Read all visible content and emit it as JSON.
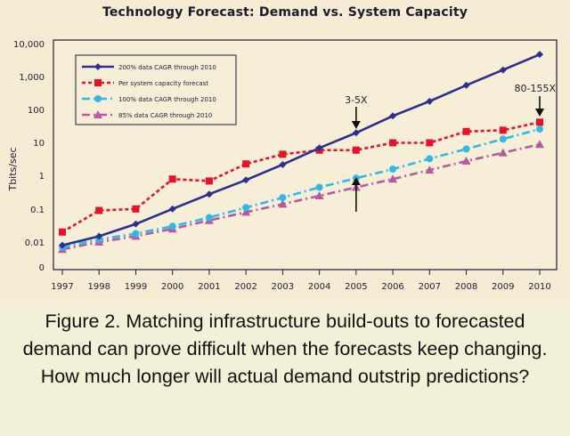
{
  "caption": "Figure 2. Matching infrastructure build-outs to forecasted demand can prove difficult when the forecasts keep changing. How much longer will actual demand outstrip predictions?",
  "chart_data": {
    "type": "line",
    "title": "Technology Forecast: Demand vs. System Capacity",
    "ylabel": "Tbits/sec",
    "xlabel": "",
    "y_scale": "log",
    "y_ticks": [
      "10,000",
      "1,000",
      "100",
      "10",
      "1",
      "0.1",
      "0.01",
      "0"
    ],
    "categories": [
      "1997",
      "1998",
      "1999",
      "2000",
      "2001",
      "2002",
      "2003",
      "2004",
      "2005",
      "2006",
      "2007",
      "2008",
      "2009",
      "2010"
    ],
    "grid": false,
    "legend_position": "top-left",
    "series": [
      {
        "name": "200% data CAGR through 2010",
        "color": "#2b2f8f",
        "style": "solid",
        "marker": "diamond",
        "values": [
          0.008,
          0.015,
          0.035,
          0.1,
          0.28,
          0.75,
          2.2,
          7,
          20,
          65,
          180,
          550,
          1600,
          4700
        ]
      },
      {
        "name": "Per system capacity forecast",
        "color": "#e8102a",
        "style": "dotted",
        "marker": "square",
        "values": [
          0.02,
          0.09,
          0.1,
          0.8,
          0.7,
          2.3,
          4.5,
          6,
          6,
          10,
          10,
          22,
          24,
          42
        ]
      },
      {
        "name": "100% data CAGR through 2010",
        "color": "#2fb8e8",
        "style": "dashdot",
        "marker": "circle",
        "values": [
          0.007,
          0.012,
          0.018,
          0.03,
          0.055,
          0.11,
          0.22,
          0.45,
          0.85,
          1.6,
          3.3,
          6.5,
          13,
          26
        ]
      },
      {
        "name": "85% data CAGR through 2010",
        "color": "#b65aa0",
        "style": "dashdot",
        "marker": "triangle",
        "values": [
          0.006,
          0.01,
          0.015,
          0.025,
          0.045,
          0.08,
          0.14,
          0.25,
          0.45,
          0.8,
          1.5,
          2.8,
          5,
          9
        ]
      }
    ],
    "annotations": [
      {
        "text": "3-5X",
        "x": "2005"
      },
      {
        "text": "80-155X",
        "x": "2010"
      }
    ]
  }
}
